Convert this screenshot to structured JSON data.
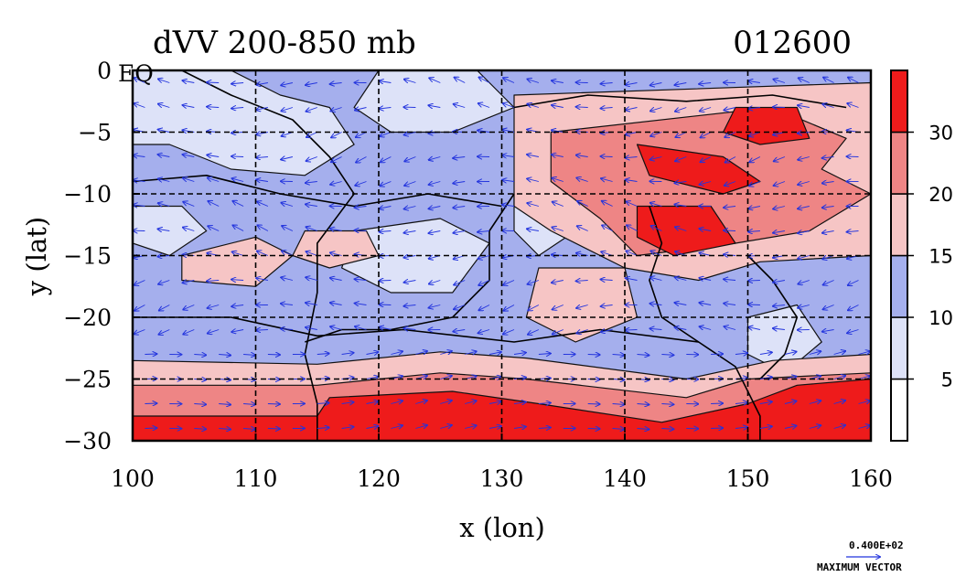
{
  "chart_data": {
    "type": "heatmap",
    "title": "dVV 200-850 mb",
    "title_right": "012600",
    "xlabel": "x (lon)",
    "ylabel": "y (lat)",
    "xlim": [
      100,
      160
    ],
    "ylim": [
      -30,
      0
    ],
    "x_ticks": [
      {
        "value": 100,
        "label": "100"
      },
      {
        "value": 110,
        "label": "110"
      },
      {
        "value": 120,
        "label": "120"
      },
      {
        "value": 130,
        "label": "130"
      },
      {
        "value": 140,
        "label": "140"
      },
      {
        "value": 150,
        "label": "150"
      },
      {
        "value": 160,
        "label": "160"
      }
    ],
    "y_ticks": [
      {
        "value": 0,
        "label": "0"
      },
      {
        "value": -5,
        "label": "−5"
      },
      {
        "value": -10,
        "label": "−10"
      },
      {
        "value": -15,
        "label": "−15"
      },
      {
        "value": -20,
        "label": "−20"
      },
      {
        "value": -25,
        "label": "−25"
      },
      {
        "value": -30,
        "label": "−30"
      }
    ],
    "corner_label": "EQ",
    "grid": true,
    "colorbar": {
      "levels": [
        0,
        5,
        10,
        15,
        20,
        30,
        40
      ],
      "labels": [
        "5",
        "10",
        "15",
        "20",
        "30"
      ],
      "colors": [
        "#ffffff",
        "#dde2f8",
        "#a5afed",
        "#f6c5c5",
        "#ee8585",
        "#ee1b1b"
      ]
    },
    "vector_legend": {
      "value": "0.400E+02",
      "text": "MAXIMUM VECTOR"
    },
    "field_regions": [
      {
        "level": 2,
        "points": [
          [
            100,
            0
          ],
          [
            160,
            0
          ],
          [
            160,
            -30
          ],
          [
            100,
            -30
          ]
        ]
      },
      {
        "level": 1,
        "points": [
          [
            100,
            0
          ],
          [
            108,
            0
          ],
          [
            112,
            -2
          ],
          [
            116,
            -3
          ],
          [
            118,
            -6
          ],
          [
            114,
            -8.5
          ],
          [
            108,
            -8
          ],
          [
            103,
            -6
          ],
          [
            100,
            -6
          ]
        ]
      },
      {
        "level": 1,
        "points": [
          [
            120,
            0
          ],
          [
            128,
            0
          ],
          [
            131,
            -3
          ],
          [
            126,
            -5
          ],
          [
            121,
            -5
          ],
          [
            118,
            -3
          ]
        ]
      },
      {
        "level": 1,
        "points": [
          [
            118,
            -13
          ],
          [
            125,
            -12
          ],
          [
            129,
            -14
          ],
          [
            126,
            -18
          ],
          [
            121,
            -18
          ],
          [
            117,
            -16
          ]
        ]
      },
      {
        "level": 1,
        "points": [
          [
            100,
            -11
          ],
          [
            104,
            -11
          ],
          [
            106,
            -13
          ],
          [
            103,
            -15
          ],
          [
            100,
            -14
          ]
        ]
      },
      {
        "level": 1,
        "points": [
          [
            131,
            -10
          ],
          [
            135,
            -10
          ],
          [
            136,
            -13
          ],
          [
            133,
            -15
          ],
          [
            131,
            -13
          ]
        ]
      },
      {
        "level": 1,
        "points": [
          [
            150,
            -20
          ],
          [
            154,
            -19
          ],
          [
            156,
            -22
          ],
          [
            153,
            -24.5
          ],
          [
            150,
            -23
          ]
        ]
      },
      {
        "level": 3,
        "points": [
          [
            104,
            -15
          ],
          [
            110,
            -13.5
          ],
          [
            113,
            -15
          ],
          [
            110,
            -17.5
          ],
          [
            104,
            -17
          ]
        ]
      },
      {
        "level": 3,
        "points": [
          [
            114,
            -13
          ],
          [
            119,
            -13
          ],
          [
            120,
            -15
          ],
          [
            116,
            -16
          ],
          [
            113,
            -15
          ]
        ]
      },
      {
        "level": 3,
        "points": [
          [
            133,
            -16
          ],
          [
            140,
            -16
          ],
          [
            141,
            -20
          ],
          [
            136,
            -22
          ],
          [
            132,
            -20
          ]
        ]
      },
      {
        "level": 3,
        "points": [
          [
            131,
            -2
          ],
          [
            160,
            -1
          ],
          [
            160,
            -15
          ],
          [
            151,
            -15.5
          ],
          [
            146,
            -17
          ],
          [
            140,
            -16
          ],
          [
            134,
            -13
          ],
          [
            131,
            -11
          ]
        ]
      },
      {
        "level": 4,
        "points": [
          [
            134,
            -5
          ],
          [
            152,
            -3
          ],
          [
            158,
            -5.5
          ],
          [
            156,
            -8
          ],
          [
            160,
            -10
          ],
          [
            155,
            -13
          ],
          [
            149,
            -14
          ],
          [
            141,
            -15
          ],
          [
            138,
            -12
          ],
          [
            134,
            -9
          ]
        ]
      },
      {
        "level": 5,
        "points": [
          [
            149,
            -3
          ],
          [
            154,
            -3
          ],
          [
            155,
            -5.5
          ],
          [
            151,
            -6
          ],
          [
            148,
            -5
          ]
        ]
      },
      {
        "level": 5,
        "points": [
          [
            141,
            -6
          ],
          [
            148,
            -7
          ],
          [
            151,
            -9
          ],
          [
            148,
            -10
          ],
          [
            142,
            -8.5
          ]
        ]
      },
      {
        "level": 5,
        "points": [
          [
            141,
            -11
          ],
          [
            147,
            -11
          ],
          [
            149,
            -14
          ],
          [
            144,
            -15
          ],
          [
            141,
            -13.5
          ]
        ]
      },
      {
        "level": 3,
        "points": [
          [
            100,
            -23.5
          ],
          [
            115,
            -23.8
          ],
          [
            125,
            -22.8
          ],
          [
            132,
            -23.3
          ],
          [
            145,
            -25
          ],
          [
            152,
            -23.5
          ],
          [
            160,
            -23
          ],
          [
            160,
            -30
          ],
          [
            100,
            -30
          ]
        ]
      },
      {
        "level": 4,
        "points": [
          [
            100,
            -25.5
          ],
          [
            115,
            -25.5
          ],
          [
            125,
            -24.5
          ],
          [
            132,
            -25
          ],
          [
            145,
            -26.5
          ],
          [
            150,
            -25
          ],
          [
            160,
            -24.5
          ],
          [
            160,
            -30
          ],
          [
            100,
            -30
          ]
        ]
      },
      {
        "level": 5,
        "points": [
          [
            100,
            -28
          ],
          [
            115,
            -28
          ],
          [
            116,
            -26.5
          ],
          [
            126,
            -26
          ],
          [
            133,
            -27
          ],
          [
            143,
            -28.5
          ],
          [
            150,
            -27
          ],
          [
            154,
            -25.5
          ],
          [
            160,
            -25
          ],
          [
            160,
            -30
          ],
          [
            100,
            -30
          ]
        ]
      }
    ],
    "contours": [
      {
        "points": [
          [
            104,
            0
          ],
          [
            108,
            -2
          ],
          [
            113,
            -4
          ],
          [
            116,
            -7
          ],
          [
            118,
            -10
          ],
          [
            115,
            -14
          ],
          [
            115,
            -18
          ],
          [
            114,
            -23
          ],
          [
            115,
            -27
          ],
          [
            115,
            -30
          ]
        ]
      },
      {
        "points": [
          [
            131,
            -10
          ],
          [
            129,
            -13
          ],
          [
            129,
            -17
          ],
          [
            126,
            -20
          ],
          [
            121,
            -21
          ],
          [
            117,
            -21
          ],
          [
            114,
            -22
          ]
        ]
      },
      {
        "points": [
          [
            142,
            -11
          ],
          [
            143,
            -14
          ],
          [
            142,
            -17
          ],
          [
            143,
            -20
          ],
          [
            146,
            -22
          ],
          [
            149,
            -24
          ],
          [
            150,
            -26
          ],
          [
            151,
            -28
          ],
          [
            151,
            -30
          ]
        ]
      },
      {
        "points": [
          [
            150,
            -15
          ],
          [
            152,
            -17
          ],
          [
            154,
            -20
          ],
          [
            153,
            -23
          ],
          [
            151,
            -25
          ]
        ]
      },
      {
        "points": [
          [
            131,
            -3
          ],
          [
            137,
            -2
          ],
          [
            145,
            -2.5
          ],
          [
            152,
            -2
          ],
          [
            158,
            -3
          ]
        ]
      },
      {
        "points": [
          [
            100,
            -9
          ],
          [
            106,
            -8.5
          ],
          [
            112,
            -10
          ],
          [
            118,
            -11
          ],
          [
            124,
            -10
          ],
          [
            130,
            -11
          ]
        ]
      },
      {
        "points": [
          [
            100,
            -20
          ],
          [
            108,
            -20
          ],
          [
            115,
            -21.5
          ],
          [
            122,
            -21
          ],
          [
            131,
            -22
          ],
          [
            138,
            -21
          ],
          [
            146,
            -22
          ]
        ]
      }
    ]
  }
}
